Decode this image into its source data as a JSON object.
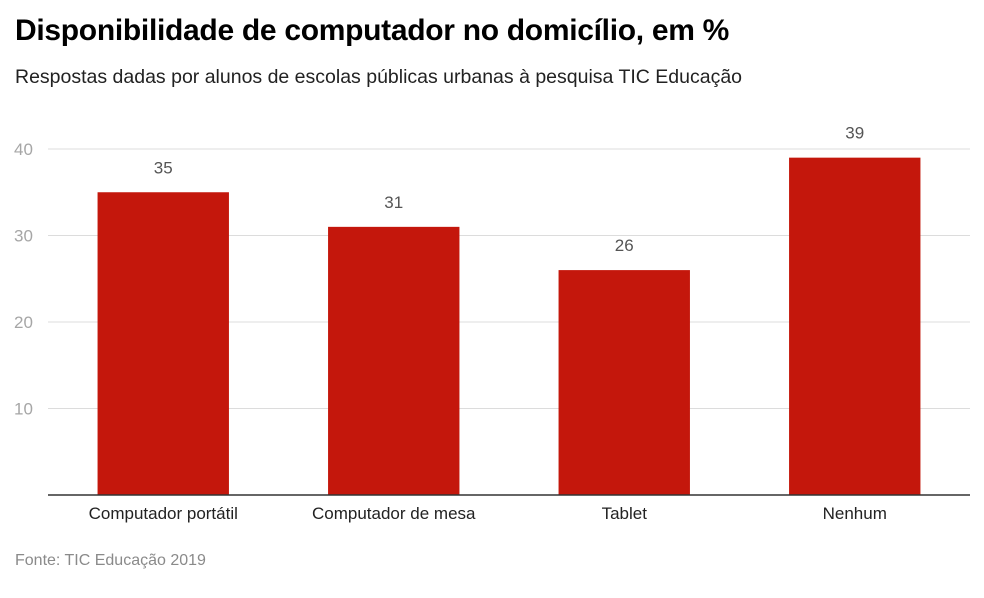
{
  "chart_data": {
    "type": "bar",
    "title": "Disponibilidade de computador no domicílio, em %",
    "subtitle": "Respostas dadas por alunos de escolas públicas urbanas à pesquisa TIC Educação",
    "source": "Fonte: TIC Educação 2019",
    "categories": [
      "Computador portátil",
      "Computador de mesa",
      "Tablet",
      "Nenhum"
    ],
    "values": [
      35,
      31,
      26,
      39
    ],
    "value_labels": [
      "35",
      "31",
      "26",
      "39"
    ],
    "yticks": [
      10,
      20,
      30,
      40
    ],
    "ylim": [
      0,
      40
    ],
    "xlabel": "",
    "ylabel": "",
    "grid": true,
    "bar_color": "#c4170c"
  }
}
